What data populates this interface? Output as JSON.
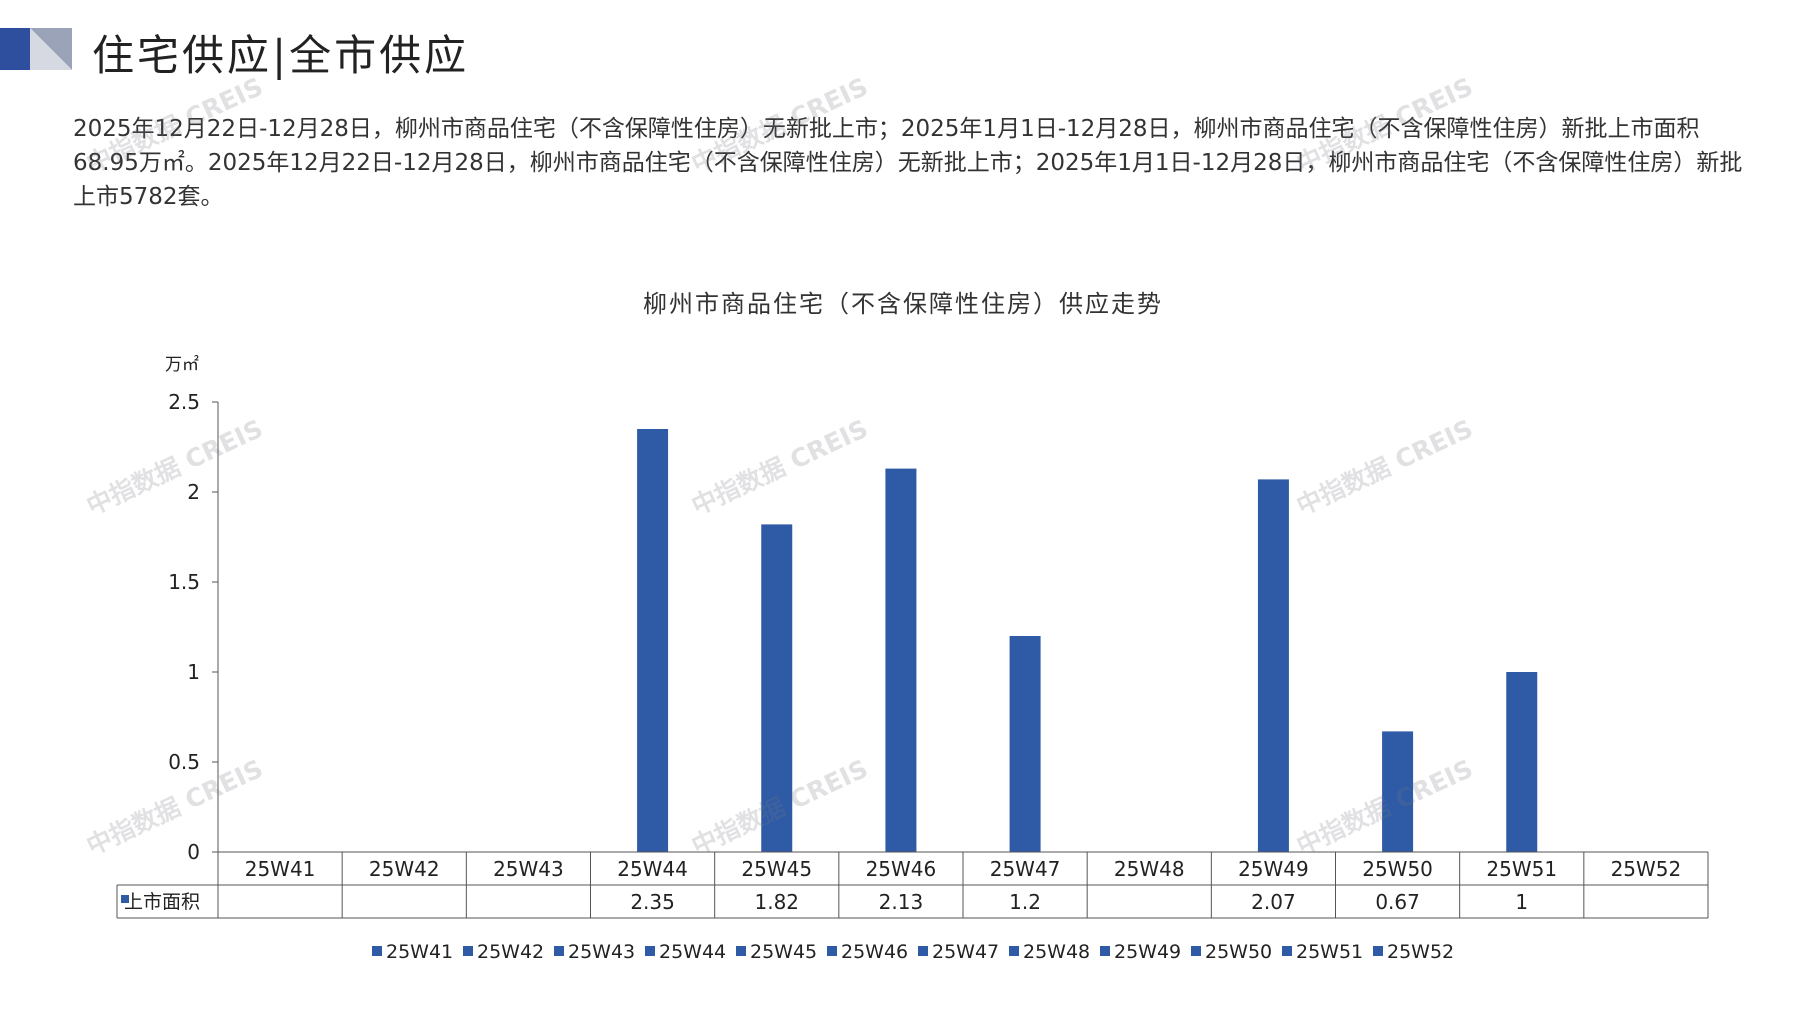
{
  "header": {
    "title": "住宅供应|全市供应"
  },
  "summary_text": "2025年12月22日-12月28日，柳州市商品住宅（不含保障性住房）无新批上市；2025年1月1日-12月28日，柳州市商品住宅（不含保障性住房）新批上市面积68.95万㎡。2025年12月22日-12月28日，柳州市商品住宅（不含保障性住房）无新批上市；2025年1月1日-12月28日，柳州市商品住宅（不含保障性住房）新批上市5782套。",
  "watermark_text": "中指数据 CREIS",
  "chart_data": {
    "type": "bar",
    "title": "柳州市商品住宅（不含保障性住房）供应走势",
    "yunit": "万㎡",
    "ylim": [
      0,
      2.5
    ],
    "yticks": [
      0,
      0.5,
      1,
      1.5,
      2,
      2.5
    ],
    "ytick_labels": [
      "0",
      "0.5",
      "1",
      "1.5",
      "2",
      "2.5"
    ],
    "categories": [
      "25W41",
      "25W42",
      "25W43",
      "25W44",
      "25W45",
      "25W46",
      "25W47",
      "25W48",
      "25W49",
      "25W50",
      "25W51",
      "25W52"
    ],
    "series": [
      {
        "name": "上市面积",
        "values": [
          null,
          null,
          null,
          2.35,
          1.82,
          2.13,
          1.2,
          null,
          2.07,
          0.67,
          1,
          null
        ],
        "labels": [
          "",
          "",
          "",
          "2.35",
          "1.82",
          "2.13",
          "1.2",
          "",
          "2.07",
          "0.67",
          "1",
          ""
        ]
      }
    ],
    "legend": [
      "25W41",
      "25W42",
      "25W43",
      "25W44",
      "25W45",
      "25W46",
      "25W47",
      "25W48",
      "25W49",
      "25W50",
      "25W51",
      "25W52"
    ],
    "legend_position": "bottom",
    "grid": false,
    "data_table": true,
    "bar_color": "#2e5aa6"
  }
}
